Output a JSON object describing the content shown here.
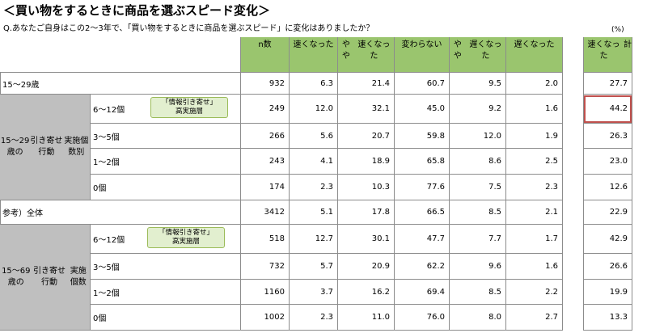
{
  "title": "＜買い物をするときに商品を選ぶスピード変化＞",
  "question": "Q.あなたご自身はこの2～3年で、「買い物をするときに商品を選ぶスピード」に変化はありましたか？",
  "unit": "(%)",
  "tag_text": [
    "「情報引き寄せ」",
    "高実施層"
  ],
  "highlight_color": "#c0504d",
  "header_color": "#9ac56e",
  "chart_data": {
    "type": "table",
    "columns": [
      [
        "n数"
      ],
      [
        "速くなった"
      ],
      [
        "やや",
        "速くなった"
      ],
      [
        "変わらない"
      ],
      [
        "やや",
        "遅くなった"
      ],
      [
        "遅くなった"
      ],
      [
        "速くなった",
        "計"
      ]
    ],
    "groups": [
      {
        "label": [
          "15～29歳の",
          "引き寄せ行動",
          "実施個数別"
        ]
      },
      {
        "label": [
          "15～69歳の",
          "引き寄せ行動",
          "実施個数"
        ]
      }
    ],
    "rows": [
      {
        "label": "15～29歳",
        "values": [
          "932",
          "6.3",
          "21.4",
          "60.7",
          "9.5",
          "2.0",
          "27.7"
        ]
      },
      {
        "label": "6～12個",
        "values": [
          "249",
          "12.0",
          "32.1",
          "45.0",
          "9.2",
          "1.6",
          "44.2"
        ]
      },
      {
        "label": "3～5個",
        "values": [
          "266",
          "5.6",
          "20.7",
          "59.8",
          "12.0",
          "1.9",
          "26.3"
        ]
      },
      {
        "label": "1～2個",
        "values": [
          "243",
          "4.1",
          "18.9",
          "65.8",
          "8.6",
          "2.5",
          "23.0"
        ]
      },
      {
        "label": "0個",
        "values": [
          "174",
          "2.3",
          "10.3",
          "77.6",
          "7.5",
          "2.3",
          "12.6"
        ]
      },
      {
        "label": "参考）全体",
        "values": [
          "3412",
          "5.1",
          "17.8",
          "66.5",
          "8.5",
          "2.1",
          "22.9"
        ]
      },
      {
        "label": "6～12個",
        "values": [
          "518",
          "12.7",
          "30.1",
          "47.7",
          "7.7",
          "1.7",
          "42.9"
        ]
      },
      {
        "label": "3～5個",
        "values": [
          "732",
          "5.7",
          "20.9",
          "62.2",
          "9.6",
          "1.6",
          "26.6"
        ]
      },
      {
        "label": "1～2個",
        "values": [
          "1160",
          "3.7",
          "16.2",
          "69.4",
          "8.5",
          "2.2",
          "19.9"
        ]
      },
      {
        "label": "0個",
        "values": [
          "1002",
          "2.3",
          "11.0",
          "76.0",
          "8.0",
          "2.7",
          "13.3"
        ]
      }
    ]
  }
}
